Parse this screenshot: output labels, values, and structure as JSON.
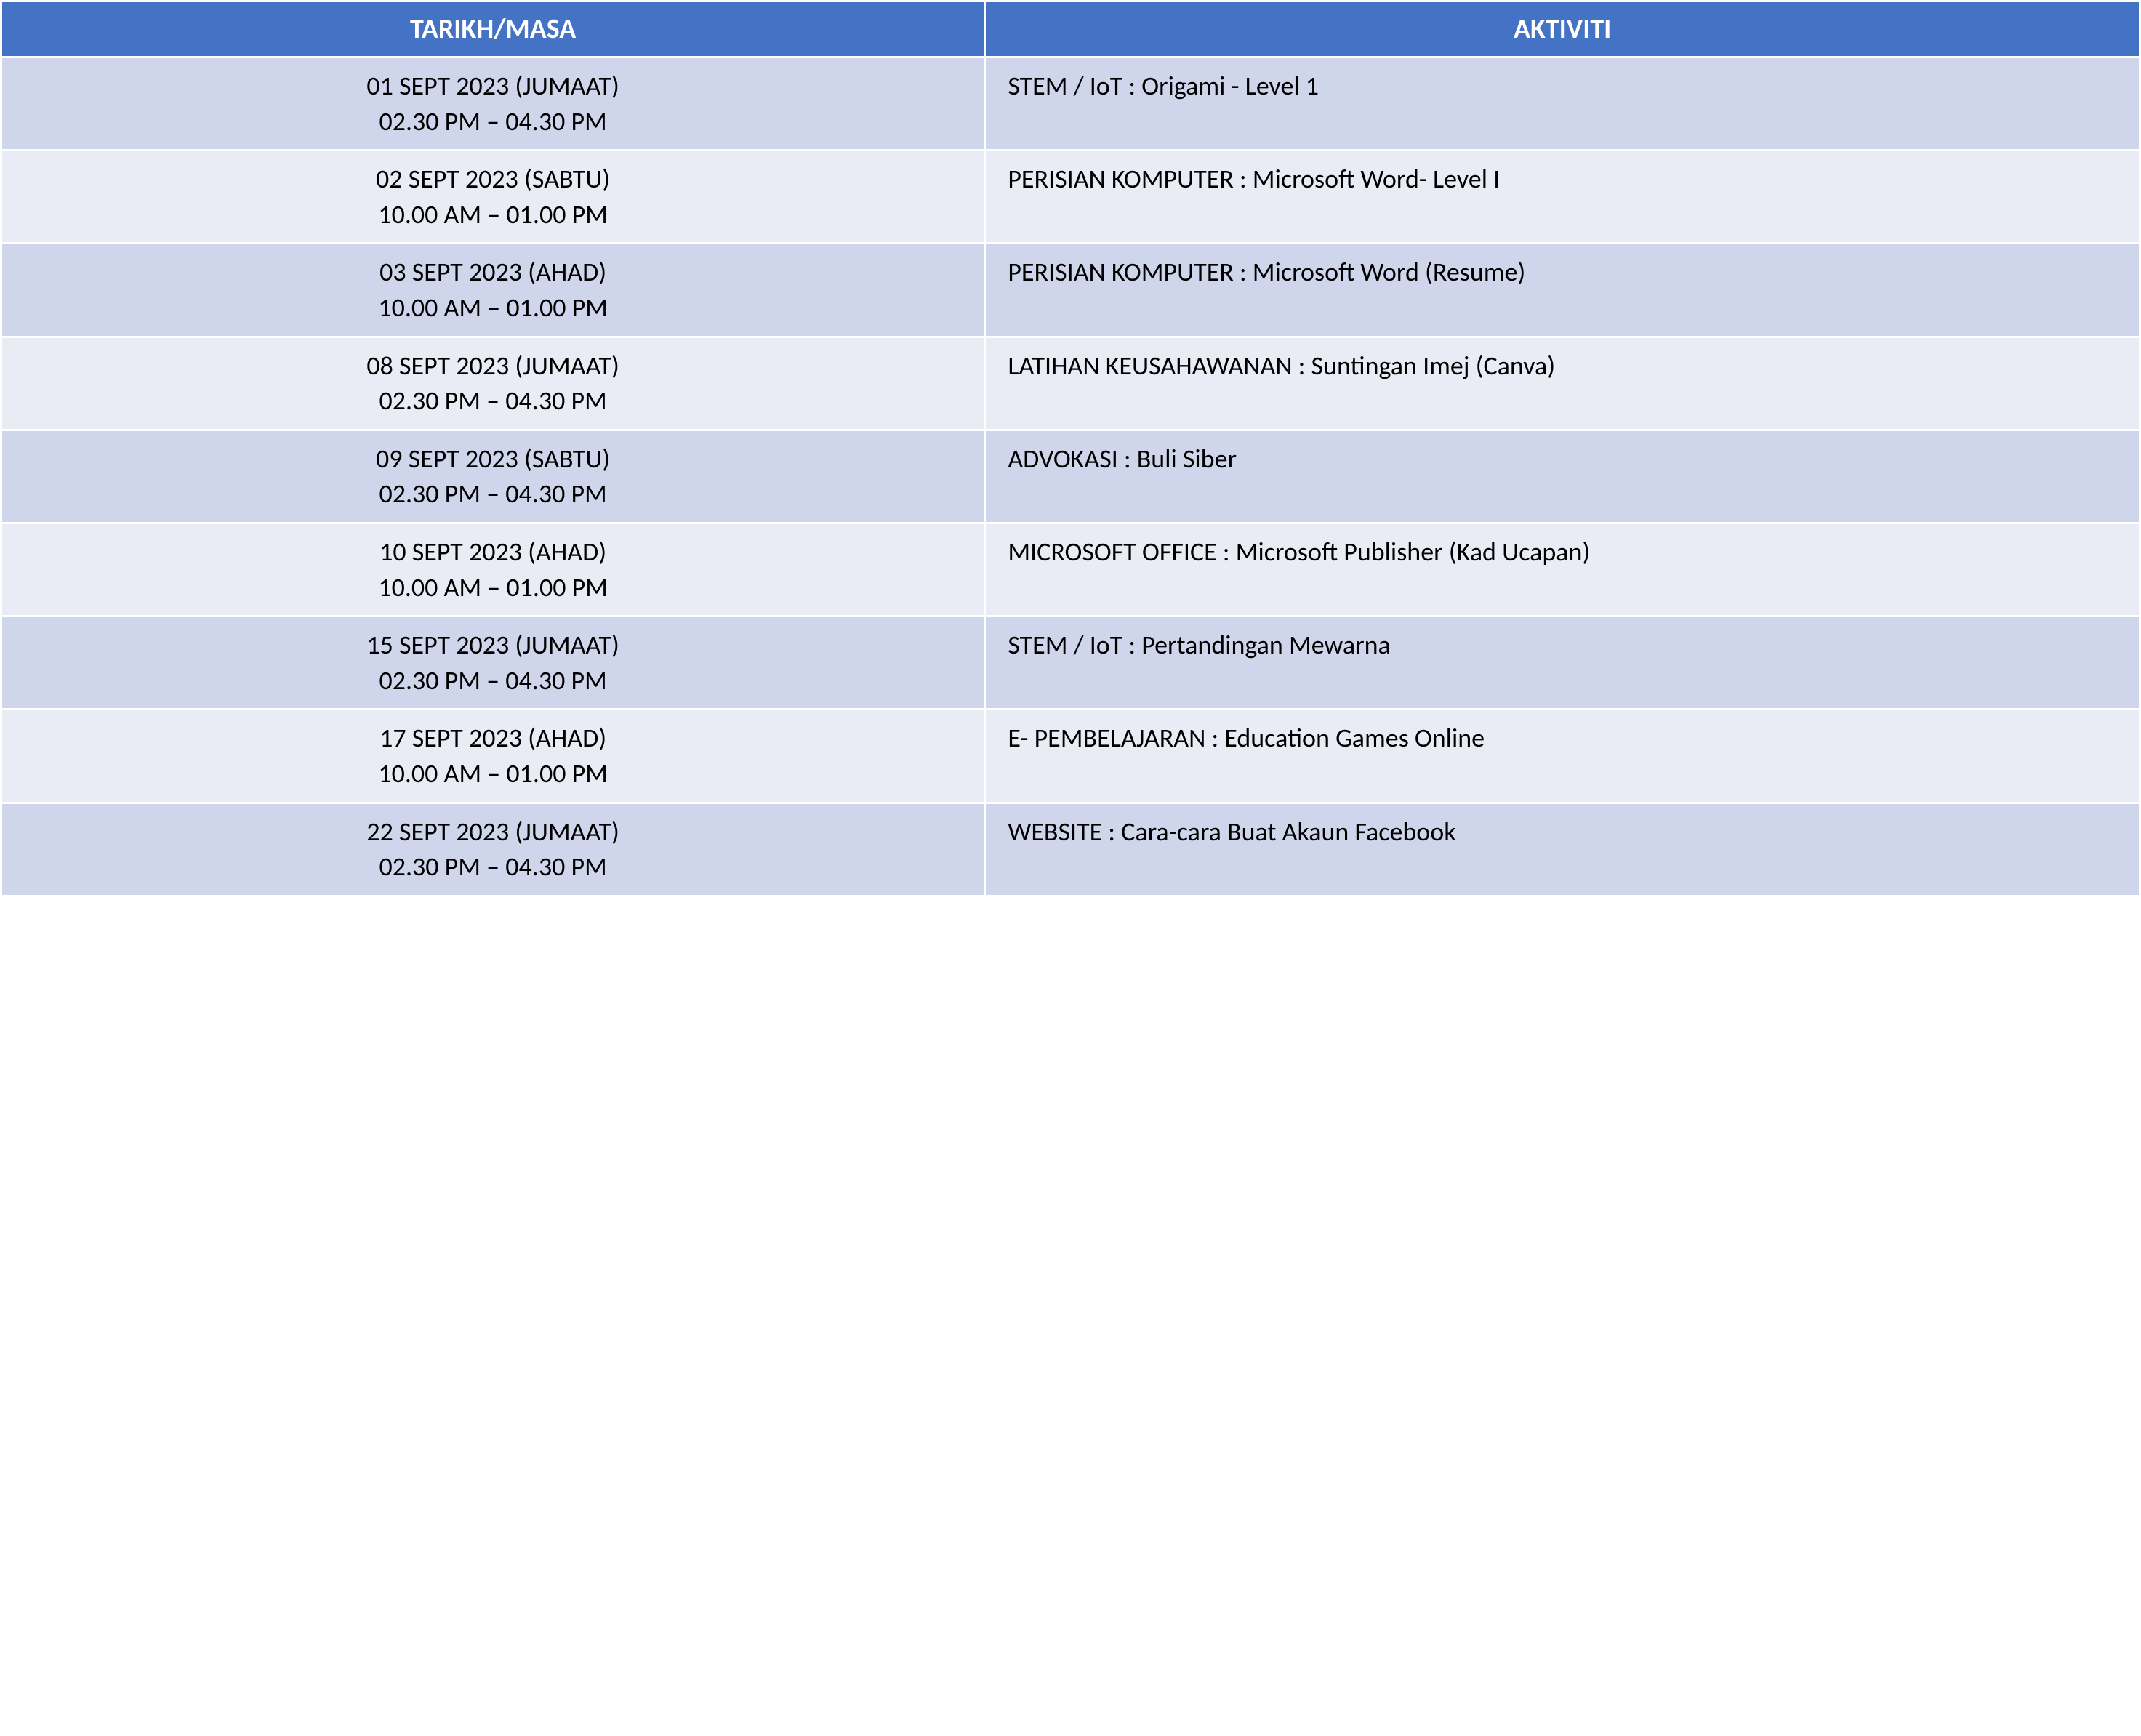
{
  "table": {
    "header_bg": "#4472c4",
    "header_color": "#ffffff",
    "row_alt_bg_1": "#cfd5ea",
    "row_alt_bg_2": "#e9ecf5",
    "border_color": "#ffffff",
    "text_color": "#000000",
    "header_fontsize": 38,
    "cell_fontsize": 36,
    "columns": [
      {
        "label": "TARIKH/MASA",
        "align": "center"
      },
      {
        "label": "AKTIVITI",
        "align": "left"
      }
    ],
    "rows": [
      {
        "date": "01 SEPT 2023 (JUMAAT)",
        "time": "02.30 PM – 04.30 PM",
        "activity": "STEM / IoT : Origami - Level 1"
      },
      {
        "date": "02 SEPT 2023 (SABTU)",
        "time": "10.00 AM – 01.00 PM",
        "activity": "PERISIAN KOMPUTER :  Microsoft Word- Level I"
      },
      {
        "date": "03 SEPT 2023 (AHAD)",
        "time": "10.00 AM – 01.00 PM",
        "activity": "PERISIAN KOMPUTER :\nMicrosoft Word (Resume)"
      },
      {
        "date": "08 SEPT 2023 (JUMAAT)",
        "time": "02.30 PM – 04.30 PM",
        "activity": "LATIHAN KEUSAHAWANAN : Suntingan Imej (Canva)"
      },
      {
        "date": "09 SEPT 2023 (SABTU)",
        "time": "02.30 PM – 04.30 PM",
        "activity": "ADVOKASI : Buli Siber"
      },
      {
        "date": "10 SEPT 2023 (AHAD)",
        "time": "10.00 AM – 01.00 PM",
        "activity": "MICROSOFT OFFICE : Microsoft Publisher (Kad Ucapan)"
      },
      {
        "date": "15 SEPT 2023 (JUMAAT)",
        "time": "02.30 PM – 04.30 PM",
        "activity": "STEM / IoT : Pertandingan Mewarna"
      },
      {
        "date": "17 SEPT 2023 (AHAD)",
        "time": "10.00 AM – 01.00 PM",
        "activity": "E- PEMBELAJARAN : Education Games Online"
      },
      {
        "date": "22 SEPT 2023 (JUMAAT)",
        "time": "02.30 PM – 04.30 PM",
        "activity": "WEBSITE : Cara-cara Buat Akaun Facebook"
      }
    ]
  }
}
